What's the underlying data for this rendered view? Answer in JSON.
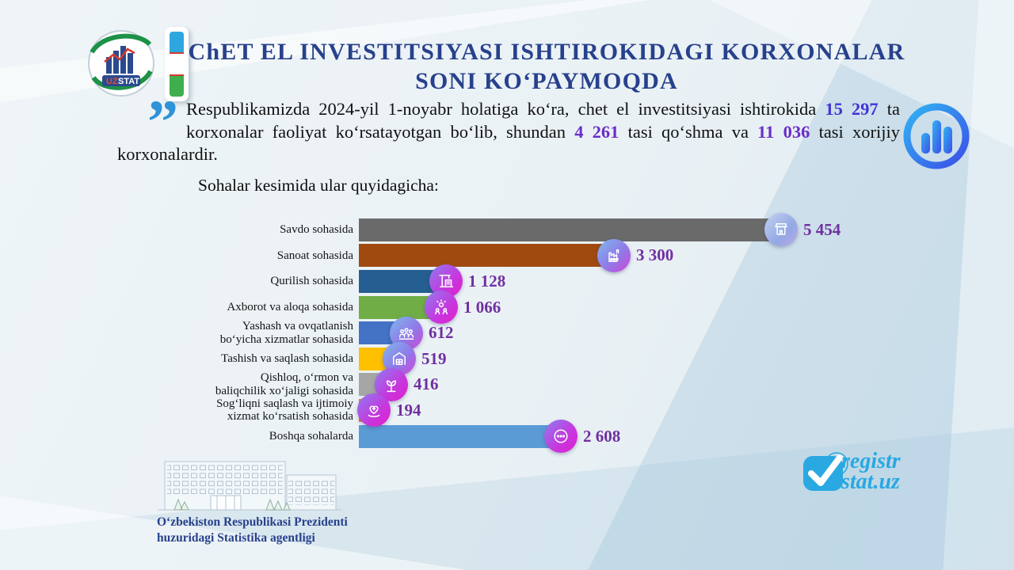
{
  "header": {
    "logo_uz": "UZ",
    "logo_stat": "STAT",
    "title_line1": "ChET EL INVESTITSIYASI ISHTIROKIDAGI KORXONALAR",
    "title_line2": "SONI KO‘PAYMOQDA"
  },
  "intro": {
    "quote_mark": "”",
    "text_part1": "Respublikamizda 2024-yil 1-noyabr holatiga ko‘ra, chet el investitsiyasi ishtirokida ",
    "highlight1": "15 297",
    "text_part2": " ta korxonalar faoliyat ko‘rsatayotgan bo‘lib, shundan ",
    "highlight2": "4 261",
    "text_part3": " tasi qo‘shma va ",
    "highlight3": "11 036",
    "text_part4": " tasi xorijiy korxonalardir."
  },
  "subtitle": "Sohalar kesimida ular quyidagicha:",
  "chart_data": {
    "type": "bar",
    "orientation": "horizontal",
    "title": "Chet el investitsiyasi ishtirokidagi korxonalar soni sohalar kesimida",
    "categories": [
      "Savdo sohasida",
      "Sanoat sohasida",
      "Qurilish sohasida",
      "Axborot va aloqa sohasida",
      "Yashash va ovqatlanish\nbo‘yicha xizmatlar sohasida",
      "Tashish va saqlash sohasida",
      "Qishloq, o‘rmon va\nbaliqchilik xo‘jaligi sohasida",
      "Sog‘liqni saqlash va ijtimoiy\nxizmat ko‘rsatish sohasida",
      "Boshqa sohalarda"
    ],
    "values": [
      5454,
      3300,
      1128,
      1066,
      612,
      519,
      416,
      194,
      2608
    ],
    "value_labels": [
      "5 454",
      "3 300",
      "1 128",
      "1 066",
      "612",
      "519",
      "416",
      "194",
      "2 608"
    ],
    "bar_colors": [
      "#6a6a6a",
      "#a04a10",
      "#255e91",
      "#70ad47",
      "#4472c4",
      "#ffc000",
      "#a6a6a6",
      "#ed7d31",
      "#5b9bd5"
    ],
    "icons": [
      "shop-icon",
      "factory-icon",
      "construction-crane-icon",
      "communication-icon",
      "people-services-icon",
      "warehouse-icon",
      "agriculture-icon",
      "healthcare-icon",
      "ellipsis-icon"
    ],
    "xlim": [
      0,
      5454
    ],
    "grid": false,
    "legend": false,
    "value_label_position": "end"
  },
  "footer": {
    "agency_line1": "O‘zbekiston Respublikasi Prezidenti",
    "agency_line2": "huzuridagi Statistika agentligi",
    "site_line1": "registr",
    "site_line2": "stat.uz"
  },
  "colors": {
    "title_navy": "#27418c",
    "quote_blue": "#2f93d8",
    "hl_blue": "#4333d6",
    "hl_purple": "#6a2dc9",
    "value_purple": "#7030a0",
    "brand_blue": "#29a8e2",
    "flag_blue": "#2ea7e0",
    "flag_green": "#3fae4e"
  }
}
